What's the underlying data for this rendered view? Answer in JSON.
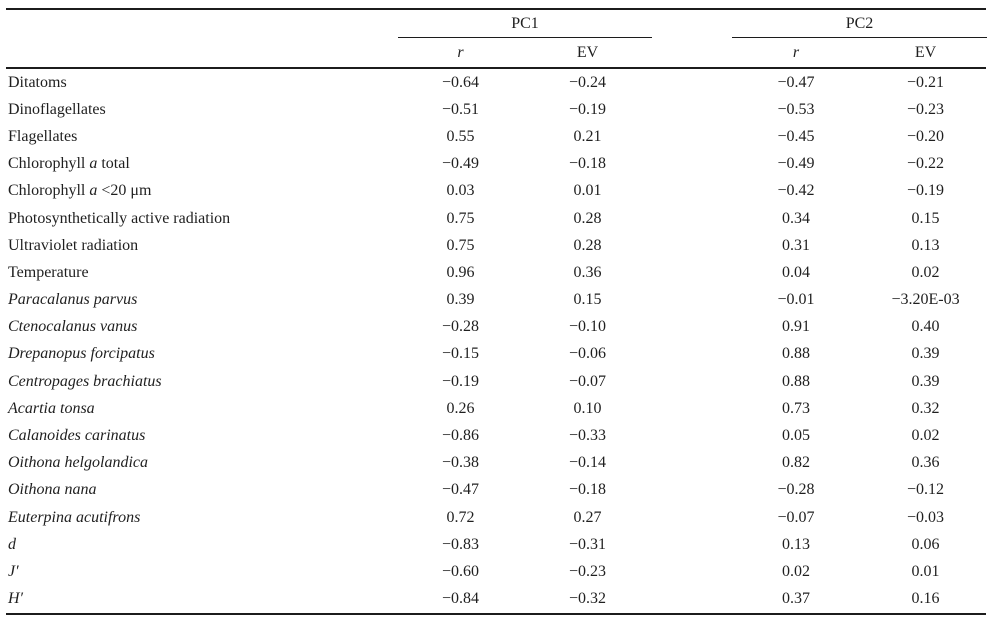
{
  "colors": {
    "background": "#ffffff",
    "text": "#1f1f1f",
    "rule": "#1c1c1c"
  },
  "table": {
    "headers": {
      "group1": "PC1",
      "group2": "PC2",
      "sub_r": "r",
      "sub_ev": "EV"
    },
    "rows": [
      {
        "label": [
          {
            "t": "Ditatoms",
            "i": false
          }
        ],
        "v": [
          "−0.64",
          "−0.24",
          "−0.47",
          "−0.21"
        ]
      },
      {
        "label": [
          {
            "t": "Dinoflagellates",
            "i": false
          }
        ],
        "v": [
          "−0.51",
          "−0.19",
          "−0.53",
          "−0.23"
        ]
      },
      {
        "label": [
          {
            "t": "Flagellates",
            "i": false
          }
        ],
        "v": [
          "0.55",
          "0.21",
          "−0.45",
          "−0.20"
        ]
      },
      {
        "label": [
          {
            "t": "Chlorophyll ",
            "i": false
          },
          {
            "t": "a",
            "i": true
          },
          {
            "t": " total",
            "i": false
          }
        ],
        "v": [
          "−0.49",
          "−0.18",
          "−0.49",
          "−0.22"
        ]
      },
      {
        "label": [
          {
            "t": "Chlorophyll ",
            "i": false
          },
          {
            "t": "a",
            "i": true
          },
          {
            "t": " <20 μm",
            "i": false
          }
        ],
        "v": [
          "0.03",
          "0.01",
          "−0.42",
          "−0.19"
        ]
      },
      {
        "label": [
          {
            "t": "Photosynthetically active radiation",
            "i": false
          }
        ],
        "v": [
          "0.75",
          "0.28",
          "0.34",
          "0.15"
        ]
      },
      {
        "label": [
          {
            "t": "Ultraviolet radiation",
            "i": false
          }
        ],
        "v": [
          "0.75",
          "0.28",
          "0.31",
          "0.13"
        ]
      },
      {
        "label": [
          {
            "t": "Temperature",
            "i": false
          }
        ],
        "v": [
          "0.96",
          "0.36",
          "0.04",
          "0.02"
        ]
      },
      {
        "label": [
          {
            "t": "Paracalanus parvus",
            "i": true
          }
        ],
        "v": [
          "0.39",
          "0.15",
          "−0.01",
          "−3.20E-03"
        ]
      },
      {
        "label": [
          {
            "t": "Ctenocalanus vanus",
            "i": true
          }
        ],
        "v": [
          "−0.28",
          "−0.10",
          "0.91",
          "0.40"
        ]
      },
      {
        "label": [
          {
            "t": "Drepanopus forcipatus",
            "i": true
          }
        ],
        "v": [
          "−0.15",
          "−0.06",
          "0.88",
          "0.39"
        ]
      },
      {
        "label": [
          {
            "t": "Centropages brachiatus",
            "i": true
          }
        ],
        "v": [
          "−0.19",
          "−0.07",
          "0.88",
          "0.39"
        ]
      },
      {
        "label": [
          {
            "t": "Acartia tonsa",
            "i": true
          }
        ],
        "v": [
          "0.26",
          "0.10",
          "0.73",
          "0.32"
        ]
      },
      {
        "label": [
          {
            "t": "Calanoides carinatus",
            "i": true
          }
        ],
        "v": [
          "−0.86",
          "−0.33",
          "0.05",
          "0.02"
        ]
      },
      {
        "label": [
          {
            "t": "Oithona helgolandica",
            "i": true
          }
        ],
        "v": [
          "−0.38",
          "−0.14",
          "0.82",
          "0.36"
        ]
      },
      {
        "label": [
          {
            "t": "Oithona nana",
            "i": true
          }
        ],
        "v": [
          "−0.47",
          "−0.18",
          "−0.28",
          "−0.12"
        ]
      },
      {
        "label": [
          {
            "t": "Euterpina acutifrons",
            "i": true
          }
        ],
        "v": [
          "0.72",
          "0.27",
          "−0.07",
          "−0.03"
        ]
      },
      {
        "label": [
          {
            "t": "d",
            "i": true
          }
        ],
        "v": [
          "−0.83",
          "−0.31",
          "0.13",
          "0.06"
        ]
      },
      {
        "label": [
          {
            "t": "J′",
            "i": true
          }
        ],
        "v": [
          "−0.60",
          "−0.23",
          "0.02",
          "0.01"
        ]
      },
      {
        "label": [
          {
            "t": "H′",
            "i": true
          }
        ],
        "v": [
          "−0.84",
          "−0.32",
          "0.37",
          "0.16"
        ]
      }
    ]
  }
}
